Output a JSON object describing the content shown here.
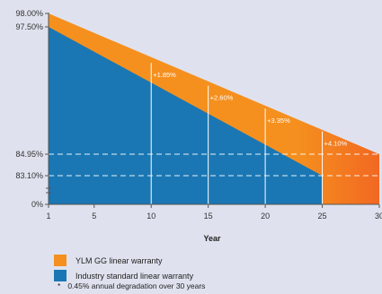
{
  "colors": {
    "ylm": "#f5901e",
    "ylm_end": "#f26822",
    "industry": "#1a77b4",
    "background": "#dfe2ee"
  },
  "chart_data": {
    "type": "area",
    "xlabel": "Year",
    "x_ticks": [
      1,
      5,
      10,
      15,
      20,
      25,
      30
    ],
    "y_tick_labels": [
      {
        "label": "98.00%",
        "value": 98.0
      },
      {
        "label": "97.50%",
        "value": 97.5
      },
      {
        "label": "84.95%",
        "value": 84.95
      },
      {
        "label": "83.10%",
        "value": 83.1
      },
      {
        "label": "0%",
        "value": 0
      }
    ],
    "axis_break": true,
    "series": [
      {
        "name": "YLM GG linear warranty",
        "x": [
          1,
          30
        ],
        "values": [
          98.0,
          84.95
        ]
      },
      {
        "name": "Industry standard linear warranty",
        "x": [
          1,
          25
        ],
        "values": [
          97.5,
          83.1
        ]
      }
    ],
    "annotations": [
      {
        "x": 10,
        "text": "+1.85%"
      },
      {
        "x": 15,
        "text": "+2.60%"
      },
      {
        "x": 20,
        "text": "+3.35%"
      },
      {
        "x": 25,
        "text": "+4.10%"
      }
    ],
    "reference_lines": [
      84.95,
      83.1
    ],
    "legend": {
      "items": [
        {
          "label": "YLM GG linear warranty",
          "color": "#f5901e"
        },
        {
          "label": "Industry standard linear warranty",
          "color": "#1a77b4"
        }
      ],
      "placement": "bottom-left"
    },
    "footnote": {
      "marker": "*",
      "text": "0.45% annual degradation over 30 years"
    }
  }
}
